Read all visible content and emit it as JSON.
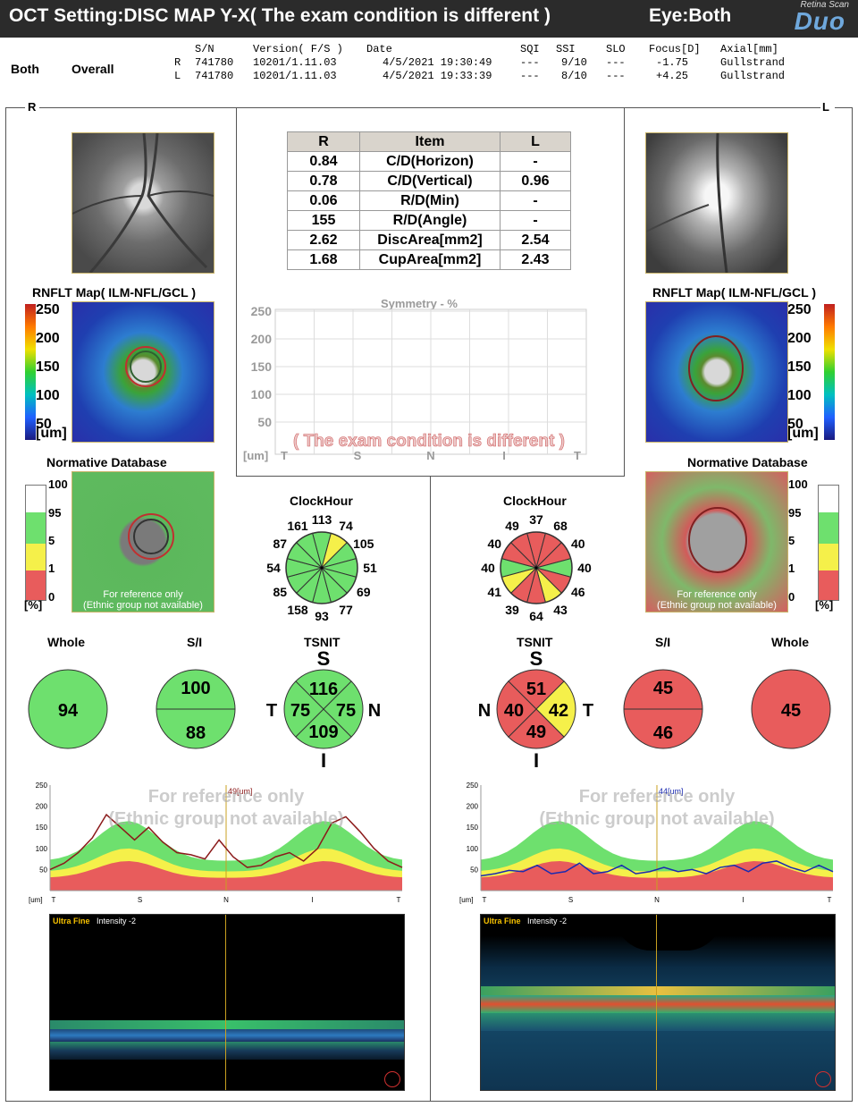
{
  "header": {
    "title": "OCT Setting:DISC MAP Y-X( The exam condition is different )",
    "eye": "Eye:Both",
    "logo_small": "Retina Scan",
    "logo_big": "Duo"
  },
  "info": {
    "left1": "Both",
    "left2": "Overall",
    "columns": [
      "S/N",
      "Version( F/S )",
      "Date",
      "SQI",
      "SSI",
      "SLO",
      "Focus[D]",
      "Axial[mm]"
    ],
    "rows": [
      {
        "eye": "R",
        "sn": "741780",
        "version": "10201/1.11.03",
        "date": "4/5/2021 19:30:49",
        "sqi": "---",
        "ssi": "9/10",
        "slo": "---",
        "focus": "-1.75",
        "axial": "Gullstrand"
      },
      {
        "eye": "L",
        "sn": "741780",
        "version": "10201/1.11.03",
        "date": "4/5/2021 19:33:39",
        "sqi": "---",
        "ssi": "8/10",
        "slo": "---",
        "focus": "+4.25",
        "axial": "Gullstrand"
      }
    ]
  },
  "side_labels": {
    "right": "R",
    "left": "L"
  },
  "table": {
    "headers": [
      "R",
      "Item",
      "L"
    ],
    "rows": [
      [
        "0.84",
        "C/D(Horizon)",
        "-"
      ],
      [
        "0.78",
        "C/D(Vertical)",
        "0.96"
      ],
      [
        "0.06",
        "R/D(Min)",
        "-"
      ],
      [
        "155",
        "R/D(Angle)",
        "-"
      ],
      [
        "2.62",
        "DiscArea[mm2]",
        "2.54"
      ],
      [
        "1.68",
        "CupArea[mm2]",
        "2.43"
      ]
    ]
  },
  "symmetry": {
    "title": "Symmetry  - %",
    "yticks": [
      "250",
      "200",
      "150",
      "100",
      "50"
    ],
    "unit": "[um]",
    "xticks": [
      "T",
      "S",
      "N",
      "I",
      "T"
    ],
    "watermark": "( The exam condition is different )"
  },
  "rnflt": {
    "title": "RNFLT Map( ILM-NFL/GCL )",
    "scale": [
      "250",
      "200",
      "150",
      "100",
      "50"
    ],
    "unit": "[um]"
  },
  "normative": {
    "title": "Normative Database",
    "scale": [
      "100",
      "95",
      "5",
      "1",
      "0"
    ],
    "unit": "[%]",
    "note1": "For reference only",
    "note2": "(Ethnic group not available)"
  },
  "clock": {
    "title": "ClockHour",
    "right": [
      "113",
      "74",
      "105",
      "51",
      "69",
      "77",
      "93",
      "158",
      "85",
      "54",
      "87",
      "161"
    ],
    "left": [
      "37",
      "68",
      "40",
      "40",
      "46",
      "43",
      "64",
      "39",
      "41",
      "40",
      "40",
      "49"
    ],
    "right_colors": [
      "#6ee06e",
      "#f5f04a",
      "#6ee06e",
      "#6ee06e",
      "#6ee06e",
      "#6ee06e",
      "#6ee06e",
      "#6ee06e",
      "#6ee06e",
      "#6ee06e",
      "#6ee06e",
      "#6ee06e"
    ],
    "left_colors": [
      "#e85c5c",
      "#e85c5c",
      "#e85c5c",
      "#6ee06e",
      "#e85c5c",
      "#f5f04a",
      "#e85c5c",
      "#e85c5c",
      "#f5f04a",
      "#6ee06e",
      "#e85c5c",
      "#e85c5c"
    ]
  },
  "summary": {
    "labels": {
      "whole": "Whole",
      "si": "S/I",
      "tsnit": "TSNIT"
    },
    "right": {
      "whole": "94",
      "s": "100",
      "i": "88",
      "t_s": "116",
      "t_t": "75",
      "t_n": "75",
      "t_i": "109"
    },
    "left": {
      "whole": "45",
      "s": "45",
      "i": "46",
      "t_s": "51",
      "t_n": "40",
      "t_t": "42",
      "t_i": "49"
    },
    "dir": {
      "S": "S",
      "I": "I",
      "T": "T",
      "N": "N"
    }
  },
  "profile": {
    "yticks": [
      "250",
      "200",
      "150",
      "100",
      "50"
    ],
    "unit": "[um]",
    "xticks": [
      "T",
      "S",
      "N",
      "I",
      "T"
    ],
    "wm1": "For reference only",
    "wm2": "(Ethnic group not available)",
    "right_marker": "49[um]",
    "left_marker": "44[um]",
    "right_values": [
      50,
      65,
      90,
      125,
      180,
      150,
      120,
      150,
      115,
      90,
      85,
      75,
      120,
      80,
      55,
      60,
      80,
      90,
      70,
      100,
      160,
      175,
      140,
      100,
      70,
      55
    ],
    "left_values": [
      35,
      40,
      48,
      45,
      60,
      40,
      45,
      65,
      40,
      45,
      60,
      40,
      45,
      55,
      45,
      50,
      40,
      55,
      60,
      45,
      65,
      70,
      55,
      45,
      60,
      45
    ]
  },
  "oct": {
    "label_r": "Ultra Fine",
    "intensity_r": "Intensity -2",
    "label_l": "Ultra Fine",
    "intensity_l": "Intensity -2"
  },
  "colors": {
    "green": "#6ee06e",
    "yellow": "#f5f04a",
    "red": "#e85c5c"
  }
}
